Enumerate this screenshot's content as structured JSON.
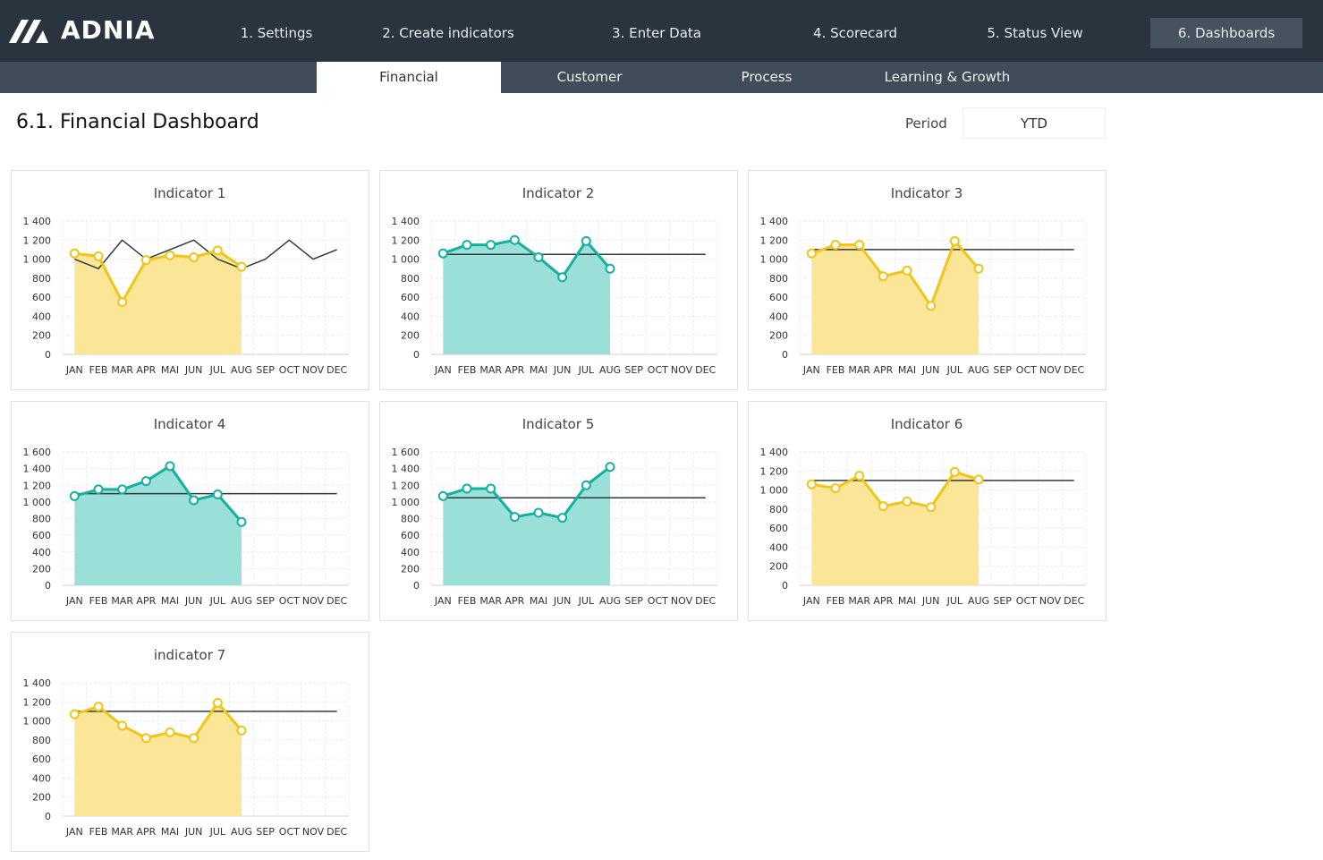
{
  "header": {
    "logo": "ADNIA",
    "nav": [
      "1. Settings",
      "2. Create indicators",
      "3. Enter Data",
      "4. Scorecard",
      "5. Status View",
      "6. Dashboards"
    ]
  },
  "subnav": [
    "Financial",
    "Customer",
    "Process",
    "Learning & Growth"
  ],
  "page_title": "6.1. Financial Dashboard",
  "period": {
    "label": "Period",
    "value": "YTD"
  },
  "charts": [
    {
      "type": "line",
      "title": "Indicator 1",
      "categories": [
        "JAN",
        "FEB",
        "MAR",
        "APR",
        "MAI",
        "JUN",
        "JUL",
        "AUG",
        "SEP",
        "OCT",
        "NOV",
        "DEC"
      ],
      "ylim": [
        0,
        1400
      ],
      "yticks": [
        0,
        200,
        400,
        600,
        800,
        {
          "value": 1000,
          "label": "1 000"
        },
        {
          "value": 1200,
          "label": "1 200"
        },
        {
          "value": 1400,
          "label": "1 400"
        }
      ],
      "grid": true,
      "series": [
        {
          "color": "#f2c418",
          "fill": "#fbe698",
          "values": [
            1060,
            1030,
            550,
            990,
            1040,
            1020,
            1090,
            920,
            null,
            null,
            null,
            null
          ]
        },
        {
          "color": "#2f3b3c",
          "values": [
            1000,
            900,
            1200,
            1000,
            1100,
            1200,
            1000,
            900,
            1000,
            1200,
            1000,
            1100
          ]
        }
      ]
    },
    {
      "type": "line",
      "title": "Indicator 2",
      "categories": [
        "JAN",
        "FEB",
        "MAR",
        "APR",
        "MAI",
        "JUN",
        "JUL",
        "AUG",
        "SEP",
        "OCT",
        "NOV",
        "DEC"
      ],
      "ylim": [
        0,
        1400
      ],
      "yticks": [
        0,
        200,
        400,
        600,
        800,
        {
          "value": 1000,
          "label": "1 000"
        },
        {
          "value": 1200,
          "label": "1 200"
        },
        {
          "value": 1400,
          "label": "1 400"
        }
      ],
      "grid": true,
      "series": [
        {
          "color": "#14b0a0",
          "fill": "#9be0d8",
          "values": [
            1060,
            1150,
            1150,
            1200,
            1020,
            810,
            1190,
            900,
            null,
            null,
            null,
            null
          ]
        },
        {
          "color": "#2f3b3c",
          "values": [
            1050,
            1050,
            1050,
            1050,
            1050,
            1050,
            1050,
            1050,
            1050,
            1050,
            1050,
            1050
          ]
        }
      ]
    },
    {
      "type": "line",
      "title": "Indicator 3",
      "categories": [
        "JAN",
        "FEB",
        "MAR",
        "APR",
        "MAI",
        "JUN",
        "JUL",
        "AUG",
        "SEP",
        "OCT",
        "NOV",
        "DEC"
      ],
      "ylim": [
        0,
        1400
      ],
      "yticks": [
        0,
        200,
        400,
        600,
        800,
        {
          "value": 1000,
          "label": "1 000"
        },
        {
          "value": 1200,
          "label": "1 200"
        },
        {
          "value": 1400,
          "label": "1 400"
        }
      ],
      "grid": true,
      "series": [
        {
          "color": "#f2c418",
          "fill": "#fbe698",
          "values": [
            1060,
            1150,
            1150,
            820,
            880,
            510,
            1190,
            900,
            null,
            null,
            null,
            null
          ]
        },
        {
          "color": "#2f3b3c",
          "values": [
            1100,
            1100,
            1100,
            1100,
            1100,
            1100,
            1100,
            1100,
            1100,
            1100,
            1100,
            1100
          ]
        }
      ]
    },
    {
      "type": "line",
      "title": "Indicator 4",
      "categories": [
        "JAN",
        "FEB",
        "MAR",
        "APR",
        "MAI",
        "JUN",
        "JUL",
        "AUG",
        "SEP",
        "OCT",
        "NOV",
        "DEC"
      ],
      "ylim": [
        0,
        1600
      ],
      "yticks": [
        0,
        200,
        400,
        600,
        800,
        {
          "value": 1000,
          "label": "1 000"
        },
        {
          "value": 1200,
          "label": "1 200"
        },
        {
          "value": 1400,
          "label": "1 400"
        },
        {
          "value": 1600,
          "label": "1 600"
        }
      ],
      "grid": true,
      "series": [
        {
          "color": "#14b0a0",
          "fill": "#9be0d8",
          "values": [
            1070,
            1150,
            1150,
            1250,
            1430,
            1020,
            1090,
            760,
            null,
            null,
            null,
            null
          ]
        },
        {
          "color": "#2f3b3c",
          "values": [
            1100,
            1100,
            1100,
            1100,
            1100,
            1100,
            1100,
            1100,
            1100,
            1100,
            1100,
            1100
          ]
        }
      ]
    },
    {
      "type": "line",
      "title": "Indicator 5",
      "categories": [
        "JAN",
        "FEB",
        "MAR",
        "APR",
        "MAI",
        "JUN",
        "JUL",
        "AUG",
        "SEP",
        "OCT",
        "NOV",
        "DEC"
      ],
      "ylim": [
        0,
        1600
      ],
      "yticks": [
        0,
        200,
        400,
        600,
        800,
        {
          "value": 1000,
          "label": "1 000"
        },
        {
          "value": 1200,
          "label": "1 200"
        },
        {
          "value": 1400,
          "label": "1 400"
        },
        {
          "value": 1600,
          "label": "1 600"
        }
      ],
      "grid": true,
      "series": [
        {
          "color": "#14b0a0",
          "fill": "#9be0d8",
          "values": [
            1070,
            1160,
            1160,
            820,
            870,
            810,
            1200,
            1420,
            null,
            null,
            null,
            null
          ]
        },
        {
          "color": "#2f3b3c",
          "values": [
            1050,
            1050,
            1050,
            1050,
            1050,
            1050,
            1050,
            1050,
            1050,
            1050,
            1050,
            1050
          ]
        }
      ]
    },
    {
      "type": "line",
      "title": "Indicator 6",
      "categories": [
        "JAN",
        "FEB",
        "MAR",
        "APR",
        "MAI",
        "JUN",
        "JUL",
        "AUG",
        "SEP",
        "OCT",
        "NOV",
        "DEC"
      ],
      "ylim": [
        0,
        1400
      ],
      "yticks": [
        0,
        200,
        400,
        600,
        800,
        {
          "value": 1000,
          "label": "1 000"
        },
        {
          "value": 1200,
          "label": "1 200"
        },
        {
          "value": 1400,
          "label": "1 400"
        }
      ],
      "grid": true,
      "series": [
        {
          "color": "#f2c418",
          "fill": "#fbe698",
          "values": [
            1060,
            1020,
            1150,
            830,
            880,
            820,
            1190,
            1110,
            null,
            null,
            null,
            null
          ]
        },
        {
          "color": "#2f3b3c",
          "values": [
            1100,
            1100,
            1100,
            1100,
            1100,
            1100,
            1100,
            1100,
            1100,
            1100,
            1100,
            1100
          ]
        }
      ]
    },
    {
      "type": "line",
      "title": "indicator 7",
      "categories": [
        "JAN",
        "FEB",
        "MAR",
        "APR",
        "MAI",
        "JUN",
        "JUL",
        "AUG",
        "SEP",
        "OCT",
        "NOV",
        "DEC"
      ],
      "ylim": [
        0,
        1400
      ],
      "yticks": [
        0,
        200,
        400,
        600,
        800,
        {
          "value": 1000,
          "label": "1 000"
        },
        {
          "value": 1200,
          "label": "1 200"
        },
        {
          "value": 1400,
          "label": "1 400"
        }
      ],
      "grid": true,
      "series": [
        {
          "color": "#f2c418",
          "fill": "#fbe698",
          "values": [
            1070,
            1150,
            950,
            820,
            880,
            820,
            1190,
            900,
            null,
            null,
            null,
            null
          ]
        },
        {
          "color": "#2f3b3c",
          "values": [
            1100,
            1100,
            1100,
            1100,
            1100,
            1100,
            1100,
            1100,
            1100,
            1100,
            1100,
            1100
          ]
        }
      ]
    }
  ]
}
